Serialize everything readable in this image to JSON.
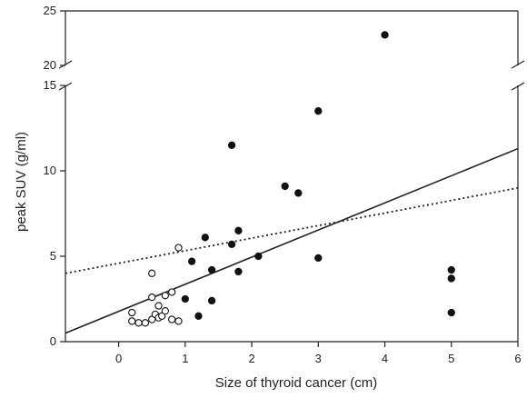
{
  "chart_data": {
    "type": "scatter",
    "title": "",
    "xlabel": "Size of thyroid cancer (cm)",
    "ylabel": "peak SUV (g/ml)",
    "xlim": [
      -0.8,
      6
    ],
    "ylim_lower": [
      0,
      15
    ],
    "ylim_upper": [
      20,
      25
    ],
    "y_axis_break": [
      15,
      20
    ],
    "grid": false,
    "x_ticks": [
      "0",
      "1",
      "2",
      "3",
      "4",
      "5",
      "6"
    ],
    "y_ticks_lower": [
      "0",
      "5",
      "10",
      "15"
    ],
    "y_ticks_upper": [
      "20",
      "25"
    ],
    "series": [
      {
        "marker": "open-circle",
        "points": [
          [
            0.2,
            1.7
          ],
          [
            0.2,
            1.2
          ],
          [
            0.3,
            1.1
          ],
          [
            0.4,
            1.1
          ],
          [
            0.5,
            1.3
          ],
          [
            0.5,
            2.6
          ],
          [
            0.5,
            4.0
          ],
          [
            0.55,
            1.6
          ],
          [
            0.6,
            1.4
          ],
          [
            0.6,
            2.1
          ],
          [
            0.65,
            1.5
          ],
          [
            0.7,
            1.8
          ],
          [
            0.7,
            2.7
          ],
          [
            0.8,
            1.3
          ],
          [
            0.8,
            2.9
          ],
          [
            0.9,
            5.5
          ],
          [
            0.9,
            1.2
          ]
        ]
      },
      {
        "marker": "filled-circle",
        "points": [
          [
            1.0,
            2.5
          ],
          [
            1.1,
            4.7
          ],
          [
            1.2,
            1.5
          ],
          [
            1.3,
            6.1
          ],
          [
            1.4,
            4.2
          ],
          [
            1.4,
            2.4
          ],
          [
            1.7,
            11.5
          ],
          [
            1.7,
            5.7
          ],
          [
            1.8,
            6.5
          ],
          [
            1.8,
            4.1
          ],
          [
            2.1,
            5.0
          ],
          [
            2.5,
            9.1
          ],
          [
            2.7,
            8.7
          ],
          [
            3.0,
            13.5
          ],
          [
            3.0,
            4.9
          ],
          [
            4.0,
            22.8
          ],
          [
            5.0,
            4.2
          ],
          [
            5.0,
            3.7
          ],
          [
            5.0,
            1.7
          ]
        ]
      }
    ],
    "trendlines": [
      {
        "style": "solid",
        "x": [
          -0.8,
          6
        ],
        "y": [
          0.5,
          11.3
        ]
      },
      {
        "style": "dotted",
        "x": [
          -0.8,
          6
        ],
        "y": [
          4.0,
          9.0
        ]
      }
    ]
  }
}
